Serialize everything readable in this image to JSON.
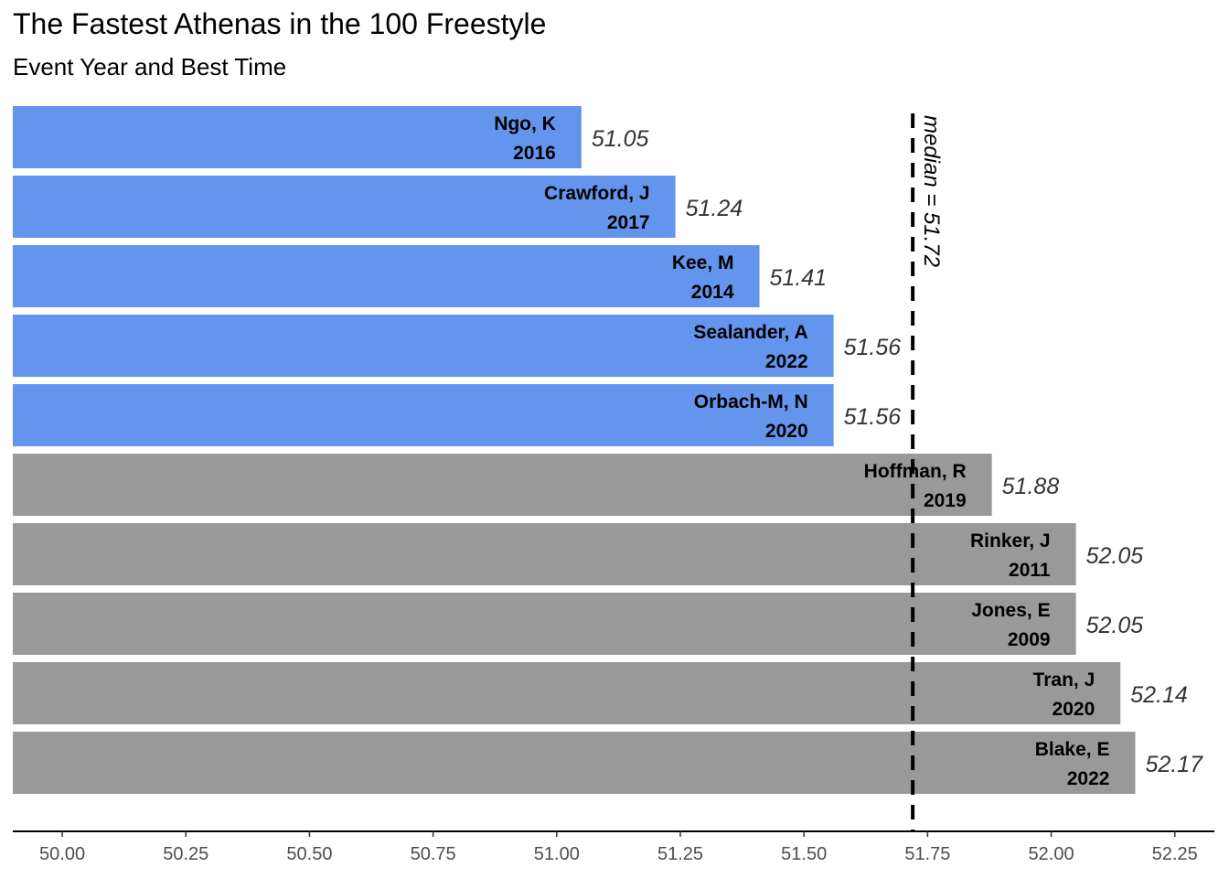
{
  "chart_data": {
    "type": "bar",
    "orientation": "horizontal",
    "title": "The Fastest Athenas in the 100 Freestyle",
    "subtitle": "Event Year and Best Time",
    "xlabel": "",
    "ylabel": "",
    "xlim": [
      49.9,
      52.33
    ],
    "x_ticks": [
      "50.00",
      "50.25",
      "50.50",
      "50.75",
      "51.00",
      "51.25",
      "51.50",
      "51.75",
      "52.00",
      "52.25"
    ],
    "x_tick_values": [
      50.0,
      50.25,
      50.5,
      50.75,
      51.0,
      51.25,
      51.5,
      51.75,
      52.0,
      52.25
    ],
    "grid": false,
    "legend": "none",
    "colors": {
      "below_median": "#6495ed",
      "above_median": "#999999",
      "median_line": "#000000"
    },
    "median": {
      "value": 51.72,
      "label": "median =  51.72"
    },
    "bars": [
      {
        "name": "Ngo, K",
        "year": "2016",
        "value": 51.05,
        "label": "51.05",
        "group": "below_median"
      },
      {
        "name": "Crawford, J",
        "year": "2017",
        "value": 51.24,
        "label": "51.24",
        "group": "below_median"
      },
      {
        "name": "Kee, M",
        "year": "2014",
        "value": 51.41,
        "label": "51.41",
        "group": "below_median"
      },
      {
        "name": "Sealander, A",
        "year": "2022",
        "value": 51.56,
        "label": "51.56",
        "group": "below_median"
      },
      {
        "name": "Orbach-M, N",
        "year": "2020",
        "value": 51.56,
        "label": "51.56",
        "group": "below_median"
      },
      {
        "name": "Hoffman, R",
        "year": "2019",
        "value": 51.88,
        "label": "51.88",
        "group": "above_median"
      },
      {
        "name": "Rinker, J",
        "year": "2011",
        "value": 52.05,
        "label": "52.05",
        "group": "above_median"
      },
      {
        "name": "Jones, E",
        "year": "2009",
        "value": 52.05,
        "label": "52.05",
        "group": "above_median"
      },
      {
        "name": "Tran, J",
        "year": "2020",
        "value": 52.14,
        "label": "52.14",
        "group": "above_median"
      },
      {
        "name": "Blake, E",
        "year": "2022",
        "value": 52.17,
        "label": "52.17",
        "group": "above_median"
      }
    ]
  }
}
